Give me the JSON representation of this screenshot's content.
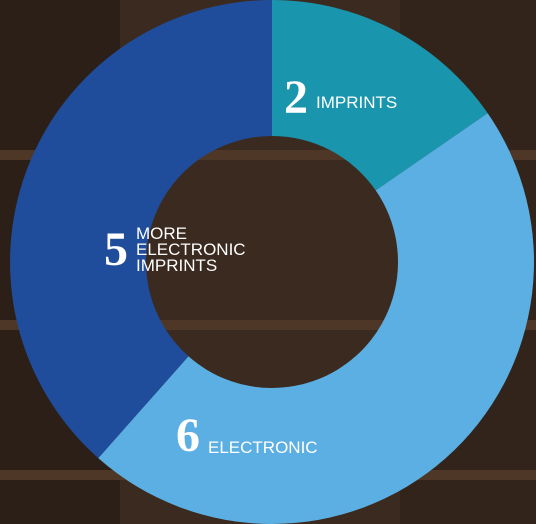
{
  "chart_data": {
    "type": "donut",
    "categories": [
      "IMPRINTS",
      "ELECTRONIC",
      "MORE ELECTRONIC IMPRINTS"
    ],
    "values": [
      2,
      6,
      5
    ],
    "colors": [
      "#1995ad",
      "#5cafe2",
      "#1f4d9b"
    ]
  }
}
